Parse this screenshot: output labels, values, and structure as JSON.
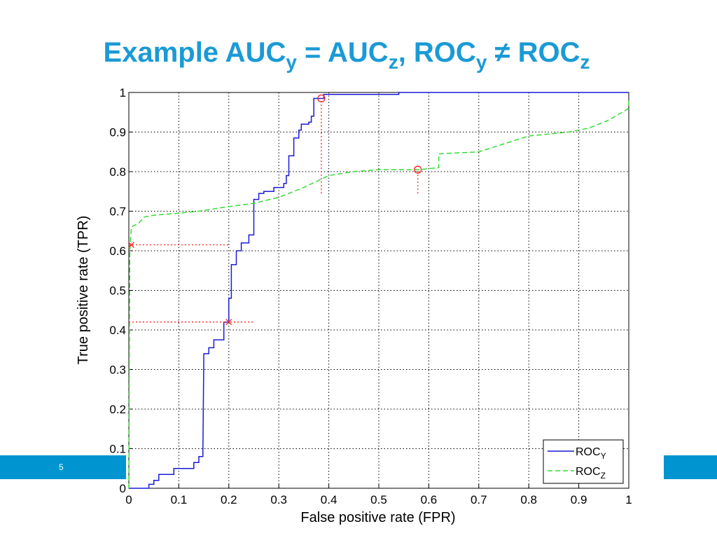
{
  "slide": {
    "page_number": 5
  },
  "chart_data": {
    "type": "line",
    "title": [
      {
        "text": "Example AUC",
        "sub": "y"
      },
      {
        "text": " = AUC",
        "sub": "z"
      },
      {
        "text": ", ROC",
        "sub": "y"
      },
      {
        "text": " ≠ ROC",
        "sub": "z"
      }
    ],
    "x_label": "False positive rate (FPR)",
    "y_label": "True positive rate (TPR)",
    "xlim": [
      0,
      1
    ],
    "ylim": [
      0,
      1
    ],
    "xticks": [
      0,
      0.1,
      0.2,
      0.3,
      0.4,
      0.5,
      0.6,
      0.7,
      0.8,
      0.9,
      1
    ],
    "yticks": [
      0,
      0.1,
      0.2,
      0.3,
      0.4,
      0.5,
      0.6,
      0.7,
      0.8,
      0.9,
      1
    ],
    "grid": true,
    "legend": "lower right",
    "series": [
      {
        "name": "ROC",
        "subscript": "Y",
        "color": "#1a1ad6",
        "dash": "solid",
        "x": [
          0,
          0.04,
          0.04,
          0.05,
          0.05,
          0.06,
          0.06,
          0.09,
          0.09,
          0.13,
          0.13,
          0.14,
          0.14,
          0.148,
          0.15,
          0.16,
          0.16,
          0.17,
          0.17,
          0.19,
          0.19,
          0.2,
          0.2,
          0.205,
          0.205,
          0.215,
          0.215,
          0.225,
          0.225,
          0.24,
          0.24,
          0.25,
          0.25,
          0.26,
          0.26,
          0.27,
          0.27,
          0.29,
          0.29,
          0.31,
          0.31,
          0.315,
          0.315,
          0.32,
          0.32,
          0.33,
          0.33,
          0.34,
          0.34,
          0.345,
          0.345,
          0.36,
          0.36,
          0.365,
          0.365,
          0.37,
          0.37,
          0.39,
          0.39,
          0.54,
          0.54,
          1
        ],
        "values": [
          0,
          0,
          0.01,
          0.01,
          0.02,
          0.02,
          0.035,
          0.035,
          0.05,
          0.05,
          0.065,
          0.065,
          0.08,
          0.08,
          0.34,
          0.34,
          0.355,
          0.355,
          0.375,
          0.375,
          0.42,
          0.42,
          0.48,
          0.48,
          0.565,
          0.565,
          0.6,
          0.6,
          0.62,
          0.62,
          0.64,
          0.64,
          0.73,
          0.73,
          0.745,
          0.745,
          0.75,
          0.75,
          0.76,
          0.76,
          0.77,
          0.77,
          0.79,
          0.79,
          0.84,
          0.84,
          0.885,
          0.885,
          0.905,
          0.905,
          0.92,
          0.92,
          0.925,
          0.925,
          0.94,
          0.94,
          0.985,
          0.985,
          0.995,
          0.995,
          1,
          1
        ]
      },
      {
        "name": "ROC",
        "subscript": "Z",
        "color": "#33dd33",
        "dash": "dashed",
        "x": [
          0,
          0.002,
          0.005,
          0.02,
          0.03,
          0.05,
          0.1,
          0.14,
          0.19,
          0.25,
          0.3,
          0.35,
          0.4,
          0.45,
          0.5,
          0.58,
          0.62,
          0.62,
          0.7,
          0.75,
          0.8,
          0.88,
          0.92,
          0.96,
          1,
          1
        ],
        "values": [
          0,
          0.6,
          0.66,
          0.67,
          0.685,
          0.69,
          0.695,
          0.7,
          0.71,
          0.72,
          0.735,
          0.76,
          0.79,
          0.8,
          0.805,
          0.805,
          0.81,
          0.845,
          0.85,
          0.87,
          0.89,
          0.9,
          0.91,
          0.93,
          0.96,
          0.98
        ]
      }
    ],
    "annotation_color": "#ff2020",
    "guides": [
      {
        "x": [
          0.385,
          0.385
        ],
        "y": [
          0.745,
          0.985
        ]
      },
      {
        "x": [
          0.578,
          0.578
        ],
        "y": [
          0.745,
          0.805
        ]
      },
      {
        "x": [
          0,
          0.2
        ],
        "y": [
          0.615,
          0.615
        ]
      },
      {
        "x": [
          0,
          0.25
        ],
        "y": [
          0.42,
          0.42
        ]
      }
    ],
    "points": [
      {
        "x": 0.385,
        "y": 0.985,
        "marker": "circle"
      },
      {
        "x": 0.578,
        "y": 0.805,
        "marker": "circle"
      },
      {
        "x": 0.005,
        "y": 0.615,
        "marker": "cross"
      },
      {
        "x": 0.2,
        "y": 0.42,
        "marker": "cross"
      }
    ]
  }
}
